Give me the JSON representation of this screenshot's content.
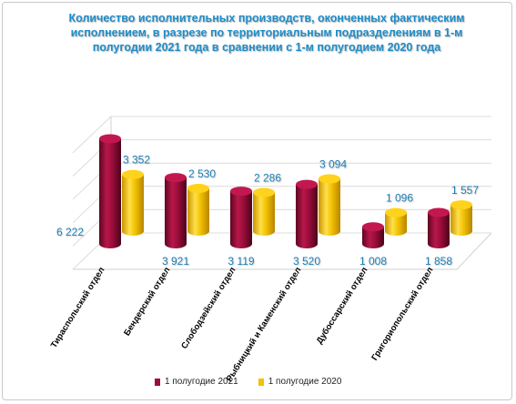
{
  "chart_data": {
    "type": "bar",
    "title": "Количество исполнительных производств, оконченных фактическим исполнением, в разрезе по территориальным подразделениям в 1-м полугодии 2021 года в сравнении с 1-м полугодием 2020 года",
    "categories": [
      "Тираспольский отдел",
      "Бендерский отдел",
      "Слободзейский отдел",
      "Рыбницкий и Каменский отдел",
      "Дубоссарский отдел",
      "Григориопольский отдел"
    ],
    "series": [
      {
        "name": "1 полугодие 2021",
        "values": [
          6222,
          3921,
          3119,
          3520,
          1008,
          1858
        ]
      },
      {
        "name": "1 полугодие 2020",
        "values": [
          3352,
          2530,
          2286,
          3094,
          1096,
          1557
        ]
      }
    ],
    "value_labels_2021": [
      "6 222",
      "3 921",
      "3 119",
      "3 520",
      "1 008",
      "1 858"
    ],
    "value_labels_2020": [
      "3 352",
      "2 530",
      "2 286",
      "3 094",
      "1 096",
      "1 557"
    ],
    "ylim": [
      0,
      7000
    ],
    "grid": true,
    "legend_position": "bottom",
    "colors": {
      "series_2021": "#9b0d3a",
      "series_2020": "#f2c200",
      "title": "#1f8dc8",
      "labels": "#1f7fb5"
    }
  }
}
